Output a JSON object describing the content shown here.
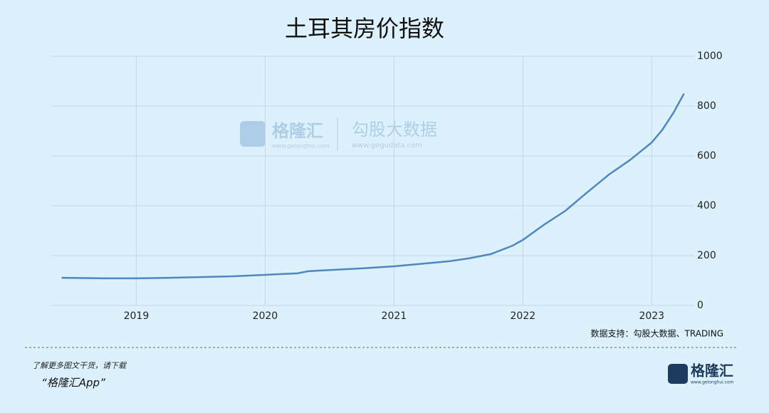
{
  "chart_data": {
    "type": "line",
    "title": "土耳其房价指数",
    "x": [
      2018.42,
      2018.75,
      2019.0,
      2019.25,
      2019.5,
      2019.75,
      2020.0,
      2020.25,
      2020.33,
      2020.42,
      2020.75,
      2021.0,
      2021.25,
      2021.42,
      2021.58,
      2021.75,
      2021.92,
      2022.0,
      2022.17,
      2022.33,
      2022.5,
      2022.67,
      2022.83,
      2023.0,
      2023.08,
      2023.17,
      2023.25
    ],
    "series": [
      {
        "name": null,
        "color": "#4f87bf",
        "values": [
          111,
          109,
          109,
          111,
          114,
          117,
          123,
          129,
          137,
          140,
          149,
          157,
          169,
          177,
          189,
          206,
          240,
          263,
          326,
          380,
          454,
          526,
          583,
          654,
          703,
          774,
          850
        ]
      }
    ],
    "xlim": [
      2018.34,
      2023.33
    ],
    "xticks": [
      2019,
      2020,
      2021,
      2022,
      2023
    ],
    "ylim": [
      0,
      1000
    ],
    "yticks": [
      0,
      200,
      400,
      600,
      800,
      1000
    ],
    "grid": true,
    "y_axis_side": "right",
    "source": "数据支持：勾股大数据、TRADING"
  },
  "watermark": {
    "brand": "格隆汇",
    "brand_url": "www.gelonghui.com",
    "partner": "勾股大数据",
    "partner_url": "www.gogudata.com"
  },
  "footer": {
    "prompt": "了解更多图文干货，请下载",
    "app": "“格隆汇App”",
    "logo": "格隆汇",
    "logo_url": "www.gelonghui.com"
  }
}
